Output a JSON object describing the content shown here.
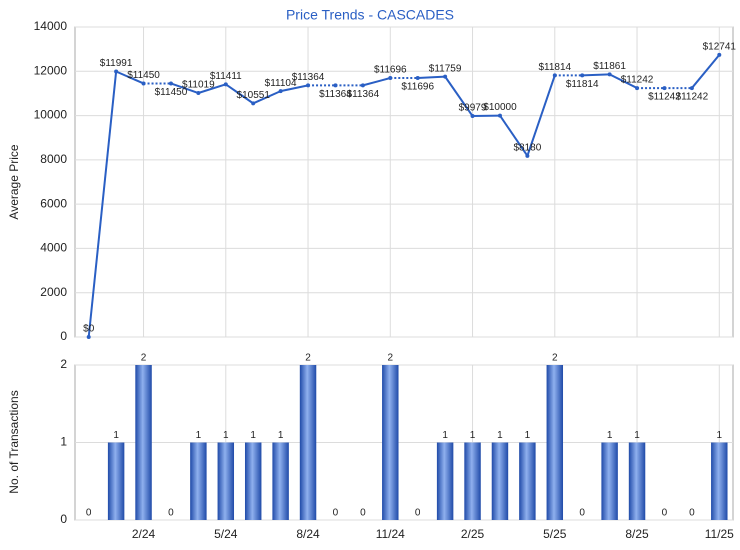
{
  "chart_data": [
    {
      "type": "line",
      "title": "Price Trends - CASCADES",
      "y_label": "Average Price",
      "color": "#2a5fc4",
      "values": [
        0,
        11991,
        11450,
        11450,
        11019,
        11411,
        10551,
        11104,
        11364,
        11364,
        11364,
        11696,
        11696,
        11759,
        9979,
        10000,
        8180,
        11814,
        11814,
        11861,
        11242,
        11242,
        11242,
        12741
      ],
      "value_labels": [
        "$0",
        "$11991",
        "$11450",
        "$11450",
        "$11019",
        "$11411",
        "$10551",
        "$11104",
        "$11364",
        "$11364",
        "$11364",
        "$11696",
        "$11696",
        "$11759",
        "$9979",
        "$10000",
        "$8180",
        "$11814",
        "$11814",
        "$11861",
        "$11242",
        "$11242",
        "$11242",
        "$12741"
      ],
      "ylim": [
        0,
        14000
      ],
      "yticks": [
        0,
        2000,
        4000,
        6000,
        8000,
        10000,
        12000,
        14000
      ],
      "grid": true
    },
    {
      "type": "bar",
      "y_label": "No. of Transactions",
      "color": "#3a66c8",
      "categories": [
        null,
        null,
        "2/24",
        null,
        null,
        "5/24",
        null,
        null,
        "8/24",
        null,
        null,
        "11/24",
        null,
        null,
        "2/25",
        null,
        null,
        "5/25",
        null,
        null,
        "8/25",
        null,
        null,
        "11/25"
      ],
      "values": [
        0,
        1,
        2,
        0,
        1,
        1,
        1,
        1,
        2,
        0,
        0,
        2,
        0,
        1,
        1,
        1,
        1,
        2,
        0,
        1,
        1,
        0,
        0,
        1
      ],
      "ylim": [
        0,
        2
      ],
      "yticks": [
        0,
        1,
        2
      ],
      "grid": true
    }
  ]
}
